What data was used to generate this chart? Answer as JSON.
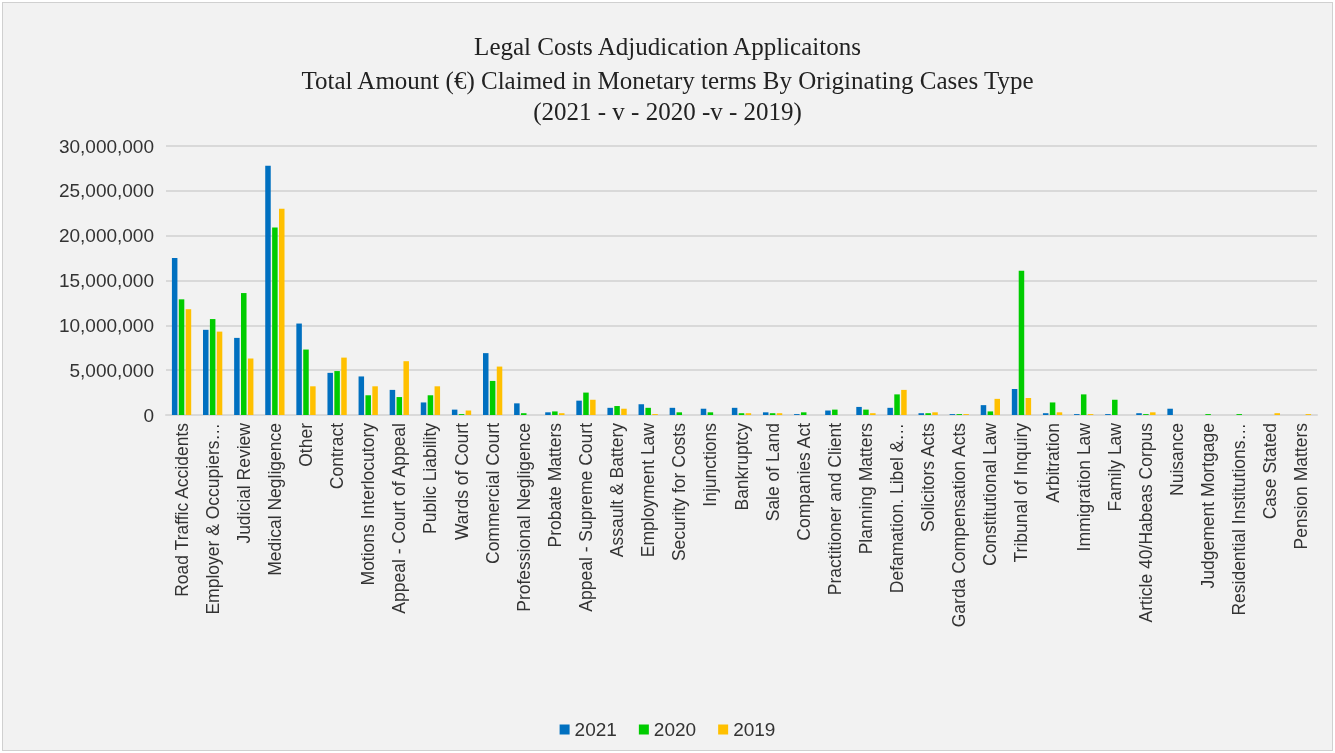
{
  "chart_data": {
    "type": "bar",
    "title": "Legal Costs Adjudication Applicaitons",
    "subtitle": "Total Amount (€) Claimed in Monetary terms By Originating Cases Type\n(2021 - v - 2020 -v - 2019)",
    "categories": [
      "Road Traffic Accidents",
      "Employer & Occupiers…",
      "Judicial Review",
      "Medical Negligence",
      "Other",
      "Contract",
      "Motions Interlocutory",
      "Appeal - Court of Appeal",
      "Public Liability",
      "Wards of Court",
      "Commercial Court",
      "Professional Negligence",
      "Probate Matters",
      "Appeal - Supreme Court",
      "Assault & Battery",
      "Employment Law",
      "Security for Costs",
      "Injunctions",
      "Bankruptcy",
      "Sale of Land",
      "Companies Act",
      "Practitioner and Client",
      "Planning Matters",
      "Defamation. Libel &…",
      "Solicitors Acts",
      "Garda Compensation Acts",
      "Constitutional Law",
      "Tribunal of Inquiry",
      "Arbitration",
      "Immigration Law",
      "Family Law",
      "Article 40/Habeas Corpus",
      "Nuisance",
      "Judgement Mortgage",
      "Residential Institutions…",
      "Case Stated",
      "Pension Matters"
    ],
    "series": [
      {
        "name": "2021",
        "color": "#0070c0",
        "values": [
          17500000,
          9500000,
          8600000,
          27800000,
          10200000,
          4700000,
          4300000,
          2800000,
          1400000,
          600000,
          6900000,
          1300000,
          300000,
          1600000,
          800000,
          1200000,
          800000,
          700000,
          800000,
          300000,
          100000,
          500000,
          900000,
          800000,
          200000,
          100000,
          1100000,
          2900000,
          200000,
          100000,
          100000,
          200000,
          700000,
          0,
          0,
          0,
          0
        ]
      },
      {
        "name": "2020",
        "color": "#00cc00",
        "values": [
          12900000,
          10700000,
          13600000,
          20900000,
          7300000,
          4900000,
          2200000,
          2000000,
          2200000,
          100000,
          3800000,
          200000,
          400000,
          2500000,
          1000000,
          800000,
          300000,
          300000,
          200000,
          200000,
          300000,
          600000,
          600000,
          2300000,
          200000,
          100000,
          400000,
          16100000,
          1400000,
          2300000,
          1700000,
          100000,
          0,
          100000,
          100000,
          0,
          0
        ]
      },
      {
        "name": "2019",
        "color": "#ffc000",
        "values": [
          11800000,
          9300000,
          6300000,
          23000000,
          3200000,
          6400000,
          3200000,
          6000000,
          3200000,
          500000,
          5400000,
          0,
          200000,
          1700000,
          700000,
          100000,
          0,
          0,
          200000,
          200000,
          0,
          0,
          200000,
          2800000,
          300000,
          100000,
          1800000,
          1900000,
          300000,
          100000,
          0,
          300000,
          0,
          0,
          0,
          200000,
          100000
        ]
      }
    ],
    "ylim": [
      0,
      30000000
    ],
    "yticks": [
      0,
      {
        "value": 5000000,
        "label": "5,000,000"
      },
      {
        "value": 10000000,
        "label": "10,000,000"
      },
      {
        "value": 15000000,
        "label": "15,000,000"
      },
      {
        "value": 20000000,
        "label": "20,000,000"
      },
      {
        "value": 25000000,
        "label": "25,000,000"
      },
      {
        "value": 30000000,
        "label": "30,000,000"
      }
    ],
    "grid": "y",
    "legend": "bottom"
  }
}
